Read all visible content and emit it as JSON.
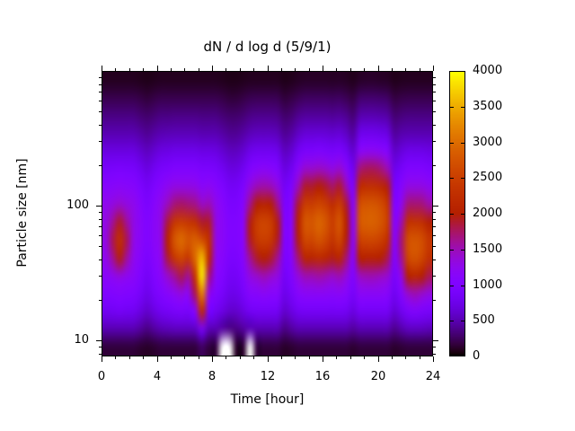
{
  "title": "dN / d log d (5/9/1)",
  "axes": {
    "xlabel": "Time [hour]",
    "ylabel": "Particle size [nm]",
    "x_major_ticks": [
      0,
      4,
      8,
      12,
      16,
      20,
      24
    ],
    "x_minor_step_hours": 1,
    "x_range_hours": [
      0,
      24
    ],
    "y_major_ticks": [
      10,
      100
    ],
    "y_minor_ticks": [
      8,
      9,
      20,
      30,
      40,
      50,
      60,
      70,
      80,
      90,
      200,
      300,
      400,
      500,
      600,
      700,
      800,
      900
    ],
    "y_range_nm": [
      7.6,
      1000
    ],
    "y_scale": "log"
  },
  "colorbar": {
    "min": 0,
    "max": 4000,
    "tick_labels": [
      "0",
      "500",
      "1000",
      "1500",
      "2000",
      "2500",
      "3000",
      "3500",
      "4000"
    ],
    "tick_values": [
      0,
      500,
      1000,
      1500,
      2000,
      2500,
      3000,
      3500,
      4000
    ],
    "palette_name": "gnuplot-default-black-purple-red-yellow",
    "palette_stops": {
      "0": "#000000",
      "1000": "#8004ff",
      "1500": "#9c0db4",
      "2000": "#b42000",
      "3000": "#dd6c00",
      "4000": "#ffff00"
    }
  },
  "chart_data": {
    "type": "heatmap",
    "title": "dN / d log d (5/9/1)",
    "xlabel": "Time [hour]",
    "ylabel": "Particle size [nm]",
    "value_range": [
      0,
      4000
    ],
    "x_hours": [
      0.25,
      0.75,
      1.25,
      1.75,
      2.25,
      2.75,
      3.25,
      3.75,
      4.25,
      4.75,
      5.25,
      5.75,
      6.25,
      6.75,
      7.25,
      7.75,
      8.25,
      8.75,
      9.25,
      9.75,
      10.25,
      10.75,
      11.25,
      11.75,
      12.25,
      12.75,
      13.25,
      13.75,
      14.25,
      14.75,
      15.25,
      15.75,
      16.25,
      16.75,
      17.25,
      17.75,
      18.25,
      18.75,
      19.25,
      19.75,
      20.25,
      20.75,
      21.25,
      21.75,
      22.25,
      22.75,
      23.25,
      23.75
    ],
    "y_sizes_nm": [
      8,
      11,
      15,
      21,
      28,
      39,
      54,
      74,
      101,
      139,
      191,
      262,
      360,
      494,
      678,
      930
    ],
    "columns_note": "one array per half-hour time step, values bottom (8 nm) to top (930 nm), units of dN/dlogd matching colorbar 0-4000; null = missing (white)",
    "columns": [
      [
        150,
        500,
        800,
        1000,
        1150,
        1250,
        1300,
        1300,
        1250,
        1100,
        900,
        700,
        500,
        350,
        200,
        80
      ],
      [
        150,
        500,
        820,
        1020,
        1220,
        1600,
        1800,
        1600,
        1320,
        1120,
        920,
        700,
        500,
        350,
        200,
        80
      ],
      [
        150,
        500,
        850,
        1050,
        1300,
        1950,
        2300,
        1900,
        1400,
        1150,
        950,
        700,
        500,
        350,
        200,
        80
      ],
      [
        150,
        500,
        820,
        1020,
        1220,
        1600,
        1800,
        1600,
        1320,
        1120,
        920,
        700,
        500,
        350,
        200,
        80
      ],
      [
        150,
        500,
        800,
        1000,
        1150,
        1250,
        1300,
        1300,
        1250,
        1100,
        900,
        700,
        500,
        350,
        200,
        80
      ],
      [
        120,
        430,
        700,
        880,
        1000,
        1100,
        1150,
        1150,
        1100,
        980,
        800,
        620,
        450,
        310,
        180,
        70
      ],
      [
        100,
        350,
        600,
        750,
        850,
        950,
        1000,
        1000,
        950,
        850,
        700,
        550,
        400,
        280,
        150,
        60
      ],
      [
        120,
        430,
        700,
        880,
        1000,
        1100,
        1150,
        1150,
        1100,
        980,
        800,
        620,
        450,
        310,
        180,
        70
      ],
      [
        150,
        500,
        800,
        1000,
        1150,
        1250,
        1300,
        1300,
        1250,
        1100,
        900,
        700,
        500,
        350,
        200,
        80
      ],
      [
        150,
        520,
        850,
        1100,
        1400,
        1850,
        2050,
        1850,
        1480,
        1220,
        950,
        720,
        510,
        350,
        200,
        80
      ],
      [
        150,
        550,
        900,
        1200,
        1600,
        2400,
        2800,
        2400,
        1700,
        1300,
        1000,
        750,
        520,
        360,
        200,
        80
      ],
      [
        150,
        550,
        950,
        1300,
        1800,
        2600,
        3000,
        2500,
        1750,
        1300,
        1000,
        750,
        520,
        360,
        200,
        80
      ],
      [
        150,
        550,
        900,
        1200,
        1600,
        2400,
        2800,
        2400,
        1700,
        1300,
        1000,
        750,
        520,
        360,
        200,
        80
      ],
      [
        150,
        570,
        1100,
        1800,
        2400,
        3000,
        2900,
        2300,
        1650,
        1280,
        1000,
        750,
        520,
        360,
        200,
        80
      ],
      [
        250,
        900,
        2200,
        3200,
        3900,
        3600,
        2700,
        1900,
        1450,
        1150,
        950,
        720,
        500,
        350,
        200,
        80
      ],
      [
        150,
        520,
        900,
        1300,
        1700,
        2200,
        2300,
        1900,
        1500,
        1200,
        950,
        720,
        500,
        350,
        200,
        80
      ],
      [
        150,
        500,
        800,
        1000,
        1150,
        1250,
        1300,
        1300,
        1250,
        1100,
        900,
        700,
        500,
        350,
        200,
        80
      ],
      [
        null,
        430,
        700,
        880,
        1000,
        1100,
        1150,
        1150,
        1100,
        980,
        800,
        620,
        450,
        310,
        180,
        70
      ],
      [
        null,
        350,
        600,
        750,
        850,
        950,
        1000,
        1000,
        950,
        850,
        700,
        550,
        400,
        280,
        150,
        60
      ],
      [
        100,
        350,
        600,
        750,
        850,
        950,
        1000,
        1000,
        950,
        850,
        700,
        550,
        400,
        280,
        150,
        60
      ],
      [
        120,
        430,
        700,
        880,
        1000,
        1100,
        1150,
        1150,
        1100,
        980,
        800,
        620,
        450,
        310,
        180,
        70
      ],
      [
        null,
        500,
        820,
        1080,
        1300,
        1600,
        1900,
        1950,
        1650,
        1320,
        1000,
        750,
        520,
        360,
        210,
        80
      ],
      [
        150,
        500,
        850,
        1100,
        1400,
        1900,
        2400,
        2500,
        2000,
        1500,
        1100,
        800,
        550,
        380,
        220,
        80
      ],
      [
        150,
        500,
        850,
        1150,
        1500,
        2000,
        2500,
        2600,
        2100,
        1550,
        1150,
        800,
        550,
        380,
        220,
        80
      ],
      [
        150,
        500,
        850,
        1100,
        1400,
        1900,
        2400,
        2500,
        2000,
        1500,
        1100,
        800,
        550,
        380,
        220,
        80
      ],
      [
        150,
        500,
        820,
        1080,
        1300,
        1600,
        1900,
        1950,
        1650,
        1320,
        1000,
        750,
        520,
        360,
        210,
        80
      ],
      [
        100,
        350,
        600,
        750,
        850,
        950,
        1000,
        1000,
        950,
        850,
        700,
        550,
        400,
        280,
        150,
        60
      ],
      [
        120,
        430,
        700,
        880,
        1000,
        1100,
        1150,
        1150,
        1100,
        980,
        800,
        620,
        450,
        310,
        180,
        70
      ],
      [
        150,
        500,
        820,
        1080,
        1330,
        1700,
        1950,
        2050,
        1880,
        1500,
        1150,
        820,
        570,
        390,
        220,
        90
      ],
      [
        150,
        500,
        850,
        1150,
        1500,
        2100,
        2600,
        2800,
        2500,
        1900,
        1400,
        950,
        650,
        430,
        250,
        100
      ],
      [
        150,
        500,
        850,
        1150,
        1500,
        2100,
        2600,
        2800,
        2500,
        1900,
        1400,
        950,
        650,
        430,
        250,
        100
      ],
      [
        150,
        500,
        850,
        1150,
        1550,
        2200,
        2750,
        2950,
        2600,
        2000,
        1450,
        980,
        660,
        430,
        250,
        100
      ],
      [
        150,
        500,
        850,
        1150,
        1500,
        2100,
        2600,
        2800,
        2500,
        1900,
        1400,
        950,
        650,
        430,
        250,
        100
      ],
      [
        150,
        500,
        840,
        1120,
        1430,
        1950,
        2350,
        2500,
        2250,
        1750,
        1300,
        900,
        620,
        410,
        240,
        95
      ],
      [
        150,
        500,
        850,
        1150,
        1500,
        2100,
        2600,
        2800,
        2500,
        1900,
        1400,
        950,
        650,
        430,
        250,
        100
      ],
      [
        150,
        500,
        820,
        1080,
        1330,
        1700,
        1950,
        2050,
        1880,
        1500,
        1150,
        820,
        570,
        390,
        220,
        90
      ],
      [
        120,
        430,
        700,
        880,
        1000,
        1100,
        1150,
        1150,
        1100,
        980,
        800,
        620,
        450,
        310,
        180,
        70
      ],
      [
        150,
        500,
        850,
        1150,
        1450,
        2000,
        2500,
        2800,
        2700,
        2200,
        1700,
        1150,
        750,
        480,
        280,
        100
      ],
      [
        150,
        500,
        850,
        1150,
        1500,
        2050,
        2600,
        2900,
        2800,
        2300,
        1780,
        1200,
        780,
        500,
        290,
        110
      ],
      [
        150,
        500,
        850,
        1150,
        1500,
        2050,
        2600,
        2900,
        2800,
        2300,
        1780,
        1200,
        780,
        500,
        290,
        110
      ],
      [
        150,
        500,
        850,
        1150,
        1450,
        2000,
        2500,
        2800,
        2700,
        2200,
        1700,
        1150,
        750,
        480,
        280,
        100
      ],
      [
        150,
        500,
        840,
        1100,
        1380,
        1800,
        2250,
        2500,
        2400,
        1950,
        1500,
        1050,
        700,
        450,
        260,
        95
      ],
      [
        110,
        380,
        640,
        800,
        920,
        1030,
        1080,
        1080,
        1030,
        920,
        760,
        590,
        430,
        300,
        170,
        65
      ],
      [
        130,
        470,
        780,
        1050,
        1300,
        1600,
        1700,
        1500,
        1250,
        1080,
        870,
        670,
        480,
        330,
        190,
        75
      ],
      [
        150,
        550,
        950,
        1400,
        2000,
        2600,
        2700,
        2300,
        1700,
        1300,
        1000,
        750,
        500,
        350,
        200,
        80
      ],
      [
        150,
        560,
        1000,
        1500,
        2150,
        2750,
        2800,
        2350,
        1720,
        1300,
        1000,
        750,
        500,
        350,
        200,
        80
      ],
      [
        150,
        550,
        950,
        1400,
        2000,
        2600,
        2700,
        2300,
        1700,
        1300,
        1000,
        750,
        500,
        350,
        200,
        80
      ],
      [
        150,
        520,
        900,
        1300,
        1800,
        2300,
        2400,
        2000,
        1550,
        1220,
        950,
        720,
        500,
        350,
        200,
        80
      ]
    ]
  }
}
